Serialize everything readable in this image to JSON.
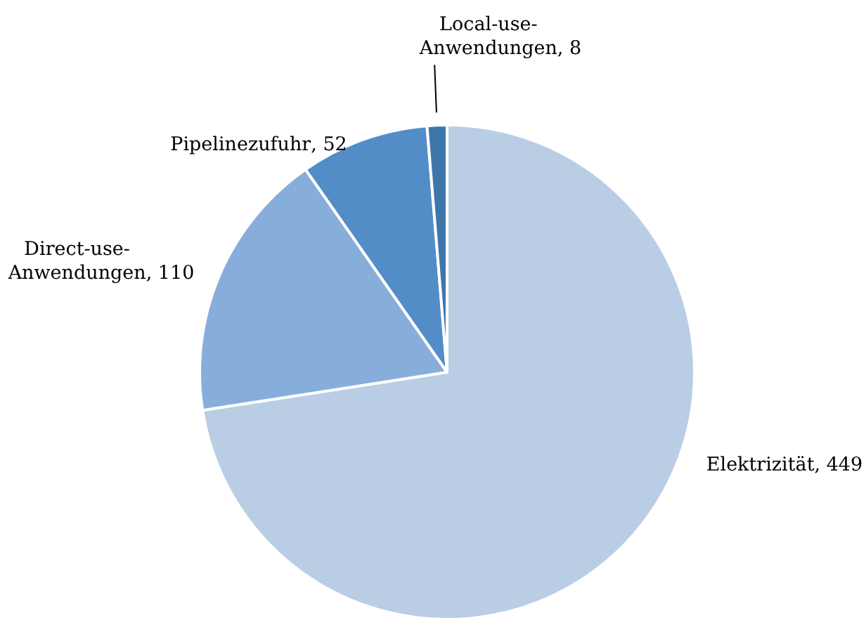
{
  "chart_data": {
    "type": "pie",
    "categories": [
      "Elektrizität",
      "Direct-use-Anwendungen",
      "Pipelinezufuhr",
      "Local-use-Anwendungen"
    ],
    "values": [
      449,
      110,
      52,
      8
    ],
    "colors": [
      "#b9cde5",
      "#87aedb",
      "#538dc8",
      "#3f76aa"
    ],
    "value_labels": [
      ", 449",
      ", 110",
      ", 52",
      ", 8"
    ]
  }
}
